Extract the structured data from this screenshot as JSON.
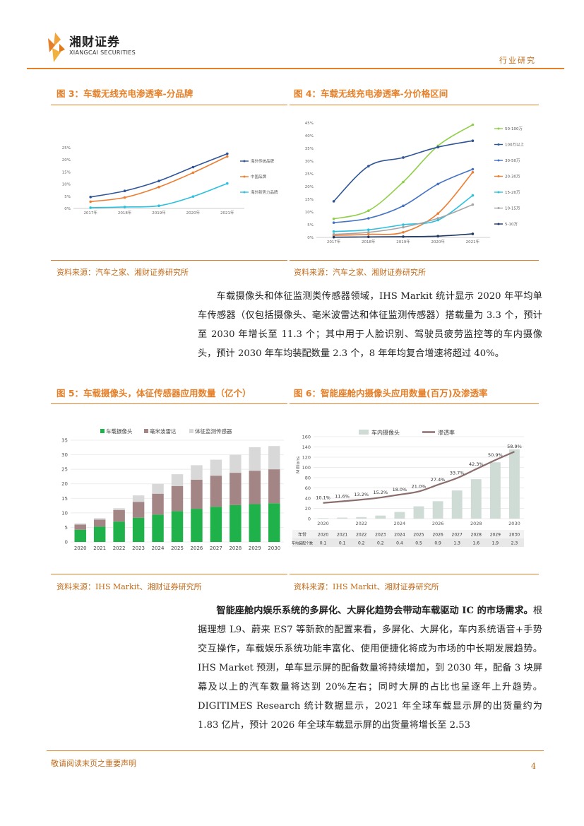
{
  "header": {
    "company_cn": "湘财证券",
    "company_en": "XIANGCAI SECURITIES",
    "section": "行业研究"
  },
  "figures": {
    "fig3": {
      "title": "图 3：车载无线充电渗透率-分品牌",
      "source": "资料来源：汽车之家、湘财证券研究所"
    },
    "fig4": {
      "title": "图 4：车载无线充电渗透率-分价格区间",
      "source": "资料来源：汽车之家、湘财证券研究所"
    },
    "fig5": {
      "title": "图 5：车载摄像头，体征传感器应用数量（亿个）",
      "source": "资料来源：IHS Markit、湘财证券研究所"
    },
    "fig6": {
      "title": "图 6：智能座舱内摄像头应用数量(百万)及渗透率",
      "source": "资料来源：IHS Markit、湘财证券研究所"
    }
  },
  "paragraph1": "车载摄像头和体征监测类传感器领域，IHS Markit 统计显示 2020 年平均单车传感器（仅包括摄像头、毫米波雷达和体征监测传感器）搭载量为 3.3 个，预计至 2030 年增长至 11.3 个；其中用于人脸识别、驾驶员疲劳监控等的车内摄像头，预计 2030 年车均装配数量 2.3 个，8 年年均复合增速将超过 40%。",
  "paragraph2_bold": "智能座舱内娱乐系统的多屏化、大屏化趋势会带动车载驱动 IC 的市场需求。",
  "paragraph2_rest": "根据理想 L9、蔚来 ES7 等新款的配置来看，多屏化、大屏化，车内系统语音+手势交互操作，车载娱乐系统功能丰富化、使用便捷化将成为市场的中长期发展趋势。IHS Market 预测，单车显示屏的配备数量将持续增加，到 2030 年，配备 3 块屏幕及以上的汽车数量将达到 20%左右；同时大屏的占比也呈逐年上升趋势。DIGITIMES Research 统计数据显示，2021 年全球车载显示屏的出货量约为 1.83 亿片，预计 2026 年全球车载显示屏的出货量将增长至 2.53",
  "footer": {
    "disclaimer": "敬请阅读末页之重要声明",
    "page": "4"
  },
  "colors": {
    "accent": "#e5802a"
  },
  "chart_data": [
    {
      "type": "line",
      "x": [
        "2017年",
        "2018年",
        "2019年",
        "2020年",
        "2021年"
      ],
      "ylim": [
        0,
        25
      ],
      "yticks": [
        "0%",
        "5%",
        "10%",
        "15%",
        "20%",
        "25%"
      ],
      "series": [
        {
          "name": "海外传统品牌",
          "color": "#2f5597",
          "values": [
            4.7,
            7.2,
            11.3,
            17.0,
            22.5
          ]
        },
        {
          "name": "中国品牌",
          "color": "#ed7d31",
          "values": [
            2.8,
            4.5,
            8.8,
            14.7,
            21.4
          ]
        },
        {
          "name": "海外新势力品牌",
          "color": "#2cc0df",
          "values": [
            0.3,
            0.6,
            1.1,
            4.9,
            10.3
          ]
        }
      ]
    },
    {
      "type": "line",
      "x": [
        "2017年",
        "2018年",
        "2019年",
        "2020年",
        "2021年"
      ],
      "ylim": [
        0,
        45
      ],
      "yticks": [
        "0%",
        "5%",
        "10%",
        "15%",
        "20%",
        "25%",
        "30%",
        "35%",
        "40%",
        "45%"
      ],
      "series": [
        {
          "name": "50-100万",
          "color": "#8fcf4a",
          "values": [
            7.3,
            10.5,
            21.8,
            36.0,
            44.3
          ]
        },
        {
          "name": "100万以上",
          "color": "#2f5597",
          "values": [
            14.2,
            28.0,
            31.4,
            35.5,
            38.0
          ]
        },
        {
          "name": "30-50万",
          "color": "#4472c4",
          "values": [
            5.8,
            7.5,
            12.4,
            21.0,
            26.8
          ]
        },
        {
          "name": "20-30万",
          "color": "#ed7d31",
          "values": [
            0.8,
            1.2,
            2.0,
            9.4,
            25.6
          ]
        },
        {
          "name": "15-20万",
          "color": "#2cc0df",
          "values": [
            2.3,
            3.0,
            5.0,
            6.8,
            16.5
          ]
        },
        {
          "name": "10-15万",
          "color": "#a5a5a5",
          "values": [
            1.2,
            2.0,
            4.0,
            7.5,
            12.9
          ]
        },
        {
          "name": "5-10万",
          "color": "#1f3864",
          "values": [
            0.1,
            0.2,
            0.3,
            0.5,
            1.4
          ]
        }
      ]
    },
    {
      "type": "bar",
      "stacked": true,
      "categories": [
        "2020",
        "2021",
        "2022",
        "2023",
        "2024",
        "2025",
        "2026",
        "2027",
        "2028",
        "2029",
        "2030"
      ],
      "ylim": [
        0,
        35
      ],
      "yticks": [
        "0",
        "5",
        "10",
        "15",
        "20",
        "25",
        "30",
        "35"
      ],
      "series": [
        {
          "name": "车载摄像头",
          "color": "#1fb24a",
          "values": [
            4.2,
            5.3,
            7.0,
            8.3,
            9.4,
            10.6,
            11.4,
            12.1,
            12.7,
            13.0,
            13.3
          ]
        },
        {
          "name": "毫米波雷达",
          "color": "#a48586",
          "values": [
            1.8,
            2.4,
            4.0,
            5.5,
            7.2,
            8.6,
            10.0,
            10.7,
            11.1,
            11.5,
            11.7
          ]
        },
        {
          "name": "体征监测传感器",
          "color": "#d8d8d8",
          "values": [
            0.4,
            0.5,
            0.6,
            2.2,
            3.4,
            4.1,
            5.0,
            5.5,
            6.2,
            8.1,
            8.0
          ]
        }
      ]
    },
    {
      "type": "bar",
      "categories": [
        "2020",
        "2021",
        "2022",
        "2023",
        "2024",
        "2025",
        "2026",
        "2027",
        "2028",
        "2029",
        "2030"
      ],
      "x_tick_labels": [
        "2020",
        "2022",
        "2024",
        "2026",
        "2028",
        "2030"
      ],
      "ylabel": "Millions",
      "ylim": [
        0,
        160
      ],
      "yticks": [
        "0",
        "20",
        "40",
        "60",
        "80",
        "100",
        "120",
        "140",
        "160"
      ],
      "series": [
        {
          "name": "车内摄像头",
          "color": "#cfdcd6",
          "values": [
            1,
            2,
            3,
            6,
            13,
            24,
            34,
            55,
            77,
            110,
            135
          ]
        },
        {
          "name": "渗透率",
          "color": "#8a6d6d",
          "labels": [
            "10.1%",
            "11.6%",
            "13.2%",
            "15.2%",
            "18.0%",
            "21.0%",
            "27.4%",
            "33.7%",
            "42.3%",
            "50.9%",
            "58.9%"
          ],
          "values": [
            10.1,
            11.6,
            13.2,
            15.2,
            18.0,
            21.0,
            27.4,
            33.7,
            42.3,
            50.9,
            58.9
          ]
        }
      ],
      "table": {
        "row_labels": [
          "年份",
          "车均装配个数"
        ],
        "years": [
          "2020",
          "2021",
          "2022",
          "2023",
          "2024",
          "2025",
          "2026",
          "2027",
          "2028",
          "2029",
          "2030"
        ],
        "values": [
          "0.1",
          "0.1",
          "0.2",
          "0.2",
          "0.4",
          "0.5",
          "0.9",
          "1.3",
          "1.6",
          "1.9",
          "2.3"
        ]
      }
    }
  ]
}
